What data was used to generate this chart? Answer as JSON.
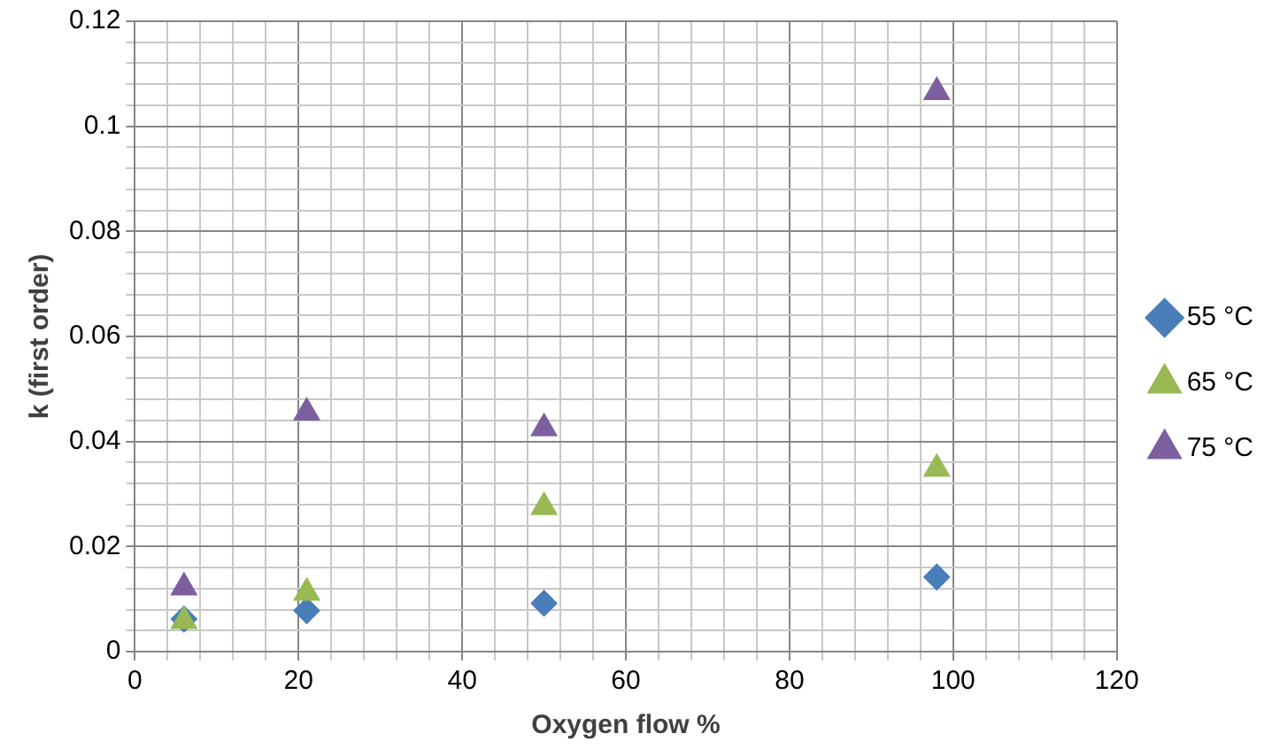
{
  "chart_data": {
    "type": "scatter",
    "xlabel": "Oxygen flow %",
    "ylabel": "k (first order)",
    "xlim": [
      0,
      120
    ],
    "ylim": [
      0,
      0.12
    ],
    "xticks": [
      0,
      {
        "value": 4,
        "label": null
      },
      {
        "value": 8,
        "label": null
      },
      {
        "value": 12,
        "label": null
      },
      {
        "value": 16,
        "label": null
      },
      20,
      {
        "value": 24,
        "label": null
      },
      {
        "value": 28,
        "label": null
      },
      {
        "value": 32,
        "label": null
      },
      {
        "value": 36,
        "label": null
      },
      40,
      {
        "value": 44,
        "label": null
      },
      {
        "value": 48,
        "label": null
      },
      {
        "value": 52,
        "label": null
      },
      {
        "value": 56,
        "label": null
      },
      60,
      {
        "value": 64,
        "label": null
      },
      {
        "value": 68,
        "label": null
      },
      {
        "value": 72,
        "label": null
      },
      {
        "value": 76,
        "label": null
      },
      80,
      {
        "value": 84,
        "label": null
      },
      {
        "value": 88,
        "label": null
      },
      {
        "value": 92,
        "label": null
      },
      {
        "value": 96,
        "label": null
      },
      100,
      {
        "value": 104,
        "label": null
      },
      {
        "value": 108,
        "label": null
      },
      {
        "value": 112,
        "label": null
      },
      {
        "value": 116,
        "label": null
      },
      120
    ],
    "yticks": [
      0,
      {
        "value": 0.004,
        "label": null
      },
      {
        "value": 0.008,
        "label": null
      },
      {
        "value": 0.012,
        "label": null
      },
      {
        "value": 0.016,
        "label": null
      },
      0.02,
      {
        "value": 0.024,
        "label": null
      },
      {
        "value": 0.028,
        "label": null
      },
      {
        "value": 0.032,
        "label": null
      },
      {
        "value": 0.036,
        "label": null
      },
      0.04,
      {
        "value": 0.044,
        "label": null
      },
      {
        "value": 0.048,
        "label": null
      },
      {
        "value": 0.052,
        "label": null
      },
      {
        "value": 0.056,
        "label": null
      },
      0.06,
      {
        "value": 0.064,
        "label": null
      },
      {
        "value": 0.068,
        "label": null
      },
      {
        "value": 0.072,
        "label": null
      },
      {
        "value": 0.076,
        "label": null
      },
      0.08,
      {
        "value": 0.084,
        "label": null
      },
      {
        "value": 0.088,
        "label": null
      },
      {
        "value": 0.092,
        "label": null
      },
      {
        "value": 0.096,
        "label": null
      },
      0.1,
      {
        "value": 0.104,
        "label": null
      },
      {
        "value": 0.108,
        "label": null
      },
      {
        "value": 0.112,
        "label": null
      },
      {
        "value": 0.116,
        "label": null
      },
      0.12
    ],
    "grid": true,
    "legend": "right",
    "x": [
      6,
      21,
      50,
      98
    ],
    "series": [
      {
        "name": "55 °C",
        "color": "#4a7ebb",
        "marker": "diamond",
        "values": [
          0.0062,
          0.0078,
          0.0092,
          0.0142
        ]
      },
      {
        "name": "65 °C",
        "color": "#98b954",
        "marker": "triangle",
        "values": [
          0.0058,
          0.0112,
          0.0275,
          0.0348
        ]
      },
      {
        "name": "75 °C",
        "color": "#7d5fa0",
        "marker": "triangle",
        "values": [
          0.0122,
          0.0455,
          0.0425,
          0.1065
        ]
      }
    ]
  }
}
